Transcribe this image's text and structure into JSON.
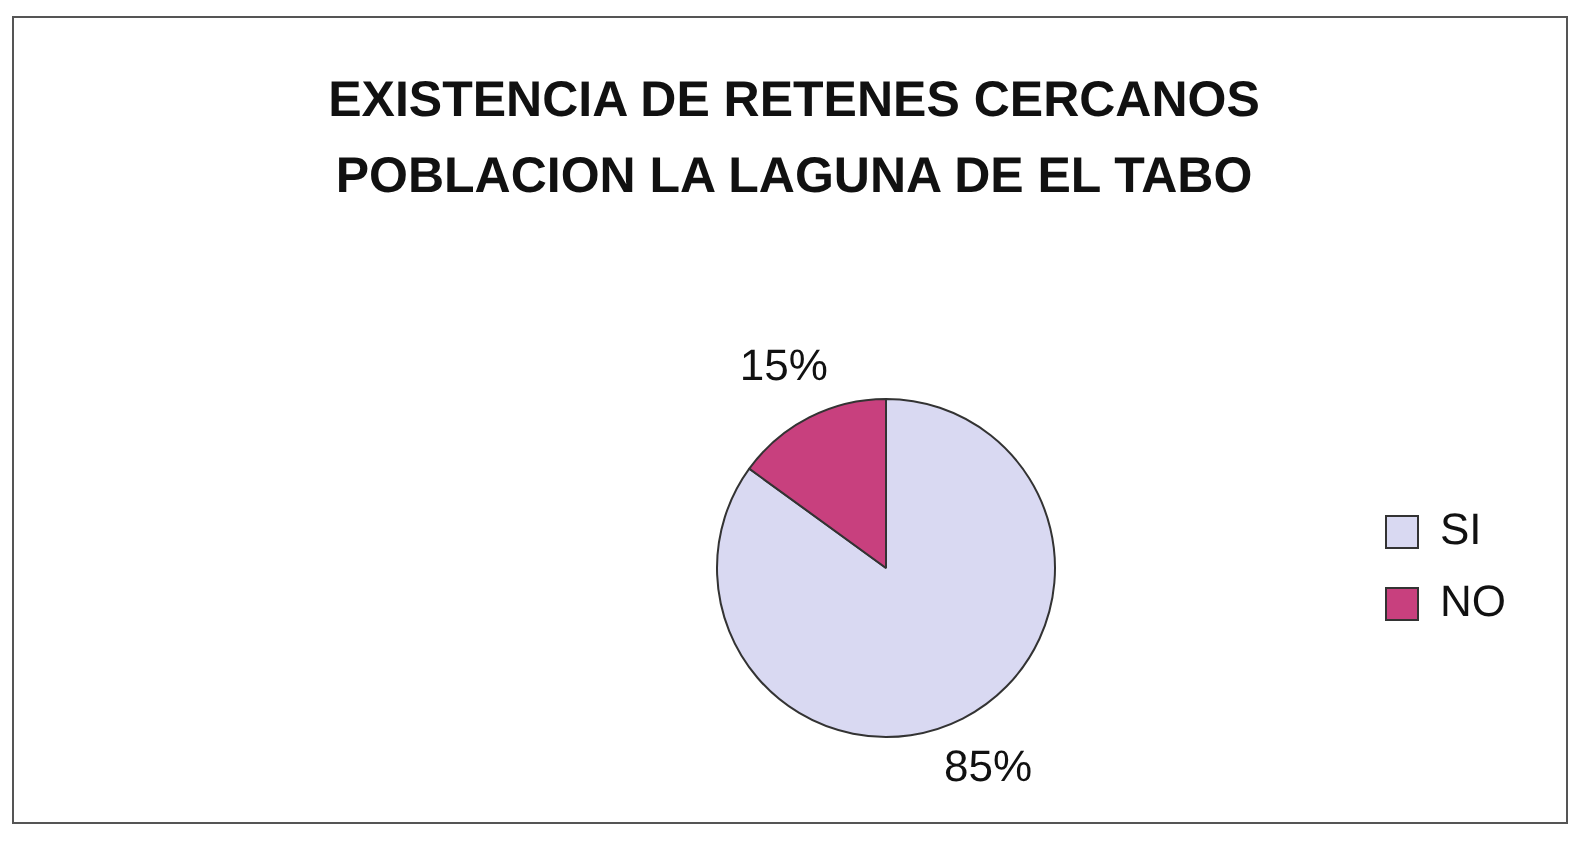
{
  "chart_data": {
    "type": "pie",
    "title": "EXISTENCIA DE RETENES CERCANOS POBLACION LA LAGUNA DE EL TABO",
    "categories": [
      "SI",
      "NO"
    ],
    "values": [
      85,
      15
    ],
    "colors": [
      "#d9d9f2",
      "#c8407e"
    ],
    "value_labels": [
      "85%",
      "15%"
    ],
    "legend": "right"
  }
}
